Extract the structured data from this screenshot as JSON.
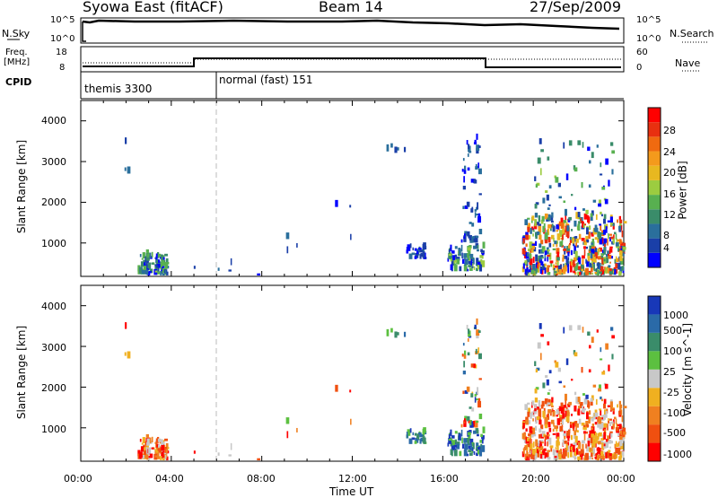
{
  "header": {
    "station": "Syowa East (fitACF)",
    "beam": "Beam 14",
    "date": "27/Sep/2009"
  },
  "summary": {
    "nsky_label": "N.Sky",
    "freq_label_1": "Freq.",
    "freq_label_2": "[MHz]",
    "cpid_label": "CPID",
    "nsearch_label": "N.Search",
    "nave_label": "Nave",
    "nsky_ticks": [
      "10^5",
      "10^0"
    ],
    "freq_ticks": [
      "18",
      "8"
    ],
    "right_ticks_top": [
      "10^5",
      "10^0"
    ],
    "right_ticks_bottom": [
      "60",
      "0"
    ],
    "cpid_segments": [
      {
        "label": "themis 3300",
        "start_hour": 0,
        "end_hour": 6
      },
      {
        "label": "normal (fast) 151",
        "start_hour": 6,
        "end_hour": 24
      }
    ]
  },
  "power_panel": {
    "ylabel": "Slant Range [km]",
    "colorbar_label": "Power [dB]",
    "colorbar_ticks": [
      "28",
      "24",
      "20",
      "16",
      "12",
      "8",
      "4"
    ],
    "colors": [
      "#0000ff",
      "#1a3fa8",
      "#2a6f9c",
      "#3a8c6a",
      "#58b050",
      "#9ccc40",
      "#e8b820",
      "#f49a1c",
      "#f06a10",
      "#e83010",
      "#ff0000"
    ]
  },
  "velocity_panel": {
    "ylabel": "Slant Range [km]",
    "colorbar_label": "Velocity  [m s^-1]",
    "colorbar_ticks": [
      "1000",
      "500",
      "100",
      "25",
      "-25",
      "-100",
      "-500",
      "-1000"
    ],
    "colors": [
      "#1838b8",
      "#2a6aa8",
      "#3a8c6a",
      "#5cc040",
      "#c8c8c8",
      "#f0b020",
      "#f08020",
      "#f05010",
      "#ff0000"
    ]
  },
  "x_axis": {
    "label": "Time UT",
    "ticks": [
      "00:00",
      "04:00",
      "08:00",
      "12:00",
      "16:00",
      "20:00",
      "00:00"
    ]
  },
  "y_axis": {
    "ticks": [
      "1000",
      "2000",
      "3000",
      "4000"
    ]
  },
  "chart_data": {
    "type": "heatmap",
    "x_unit": "hours UT",
    "xlim": [
      0,
      24
    ],
    "ylim_km": [
      180,
      4500
    ],
    "y_ticks_km": [
      1000,
      2000,
      3000,
      4000
    ],
    "cpid_change_hour": 6,
    "scatter_clusters": [
      {
        "t0": 2.5,
        "t1": 3.8,
        "r0": 200,
        "r1": 700,
        "n": 90,
        "power": "mid",
        "velocity": "neg"
      },
      {
        "t0": 1.9,
        "t1": 2.1,
        "r0": 2700,
        "r1": 3600,
        "n": 4,
        "power": "low",
        "velocity": "neg"
      },
      {
        "t0": 13.5,
        "t1": 14.6,
        "r0": 3200,
        "r1": 3450,
        "n": 5,
        "power": "low",
        "velocity": "pos"
      },
      {
        "t0": 14.3,
        "t1": 15.2,
        "r0": 600,
        "r1": 950,
        "n": 25,
        "power": "low",
        "velocity": "pos"
      },
      {
        "t0": 16.2,
        "t1": 17.8,
        "r0": 300,
        "r1": 900,
        "n": 90,
        "power": "mid",
        "velocity": "pos"
      },
      {
        "t0": 16.8,
        "t1": 17.6,
        "r0": 1000,
        "r1": 3600,
        "n": 60,
        "power": "low",
        "velocity": "mix"
      },
      {
        "t0": 19.5,
        "t1": 24.0,
        "r0": 200,
        "r1": 1600,
        "n": 520,
        "power": "high",
        "velocity": "neg"
      },
      {
        "t0": 20.0,
        "t1": 23.5,
        "r0": 1600,
        "r1": 3500,
        "n": 60,
        "power": "mid",
        "velocity": "mix"
      },
      {
        "t0": 9.0,
        "t1": 12.5,
        "r0": 600,
        "r1": 2800,
        "n": 6,
        "power": "low",
        "velocity": "mix"
      },
      {
        "t0": 4.5,
        "t1": 8.5,
        "r0": 200,
        "r1": 500,
        "n": 5,
        "power": "low",
        "velocity": "neg"
      }
    ]
  }
}
